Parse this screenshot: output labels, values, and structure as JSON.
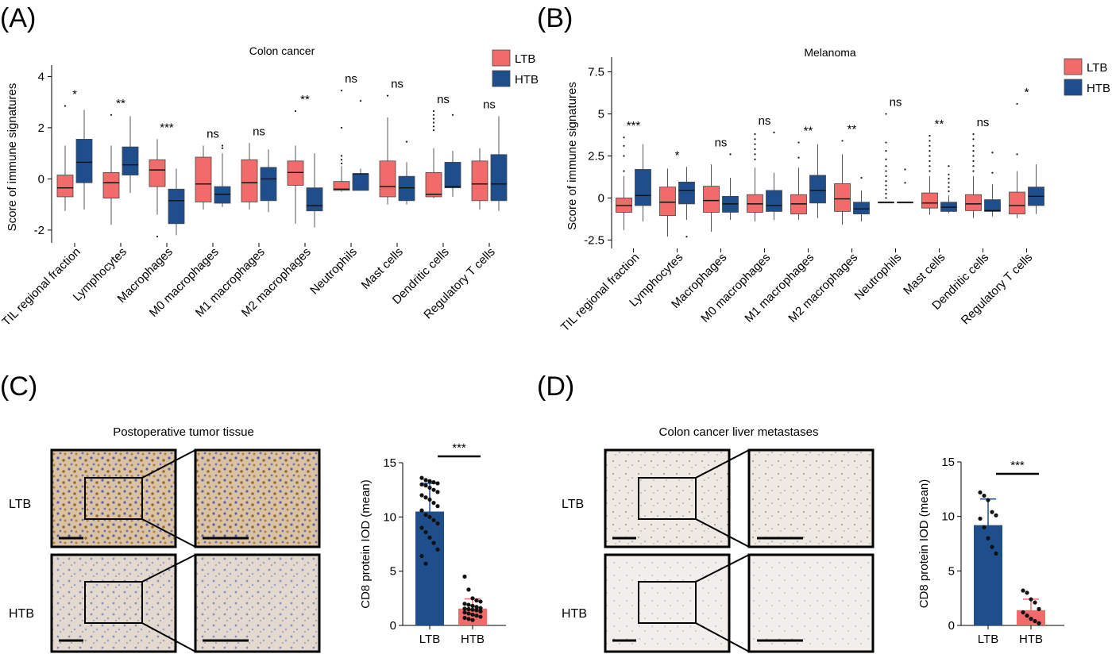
{
  "colors": {
    "LTB": "#f26b6b",
    "HTB": "#1f4e8c",
    "text": "#111111",
    "frame": "#000000"
  },
  "panels": [
    {
      "label": "(A)"
    },
    {
      "label": "(B)"
    },
    {
      "label": "(C)",
      "row_labels": [
        "LTB",
        "HTB"
      ],
      "image_title": "Postoperative tumor tissue"
    },
    {
      "label": "(D)",
      "row_labels": [
        "LTB",
        "HTB"
      ],
      "image_title": "Colon cancer liver metastases"
    }
  ],
  "chart_data": [
    {
      "type": "box",
      "panel": "A",
      "title": "Colon cancer",
      "ylabel": "Score of immune signatures",
      "ylim": [
        -2.5,
        4.2
      ],
      "yticks": [
        -2,
        0,
        2,
        4
      ],
      "legend": {
        "placement": "top-right",
        "entries": [
          "LTB",
          "HTB"
        ]
      },
      "categories": [
        "TIL regional fraction",
        "Lymphocytes",
        "Macrophages",
        "M0 macrophages",
        "M1 macrophages",
        "M2 macrophages",
        "Neutrophils",
        "Mast cells",
        "Dendritic cells",
        "Regulatory T cells"
      ],
      "significance": [
        "*",
        "**",
        "***",
        "ns",
        "ns",
        "**",
        "ns",
        "ns",
        "ns",
        "ns"
      ],
      "series": [
        {
          "name": "LTB",
          "boxes": [
            {
              "min": -1.25,
              "q1": -0.7,
              "median": -0.35,
              "q3": 0.15,
              "max": 1.3,
              "outliers": [
                2.85
              ]
            },
            {
              "min": -1.8,
              "q1": -0.75,
              "median": -0.15,
              "q3": 0.25,
              "max": 1.3,
              "outliers": [
                2.5
              ]
            },
            {
              "min": -1.4,
              "q1": -0.3,
              "median": 0.35,
              "q3": 0.75,
              "max": 1.55,
              "outliers": [
                -2.25
              ]
            },
            {
              "min": -1.2,
              "q1": -0.9,
              "median": -0.2,
              "q3": 0.85,
              "max": 1.3,
              "outliers": []
            },
            {
              "min": -1.2,
              "q1": -0.9,
              "median": -0.15,
              "q3": 0.75,
              "max": 1.4,
              "outliers": []
            },
            {
              "min": -1.75,
              "q1": -0.25,
              "median": 0.25,
              "q3": 0.7,
              "max": 1.3,
              "outliers": [
                2.65
              ]
            },
            {
              "min": -0.5,
              "q1": -0.45,
              "median": -0.4,
              "q3": -0.1,
              "max": 0.5,
              "outliers": [
                0.6,
                0.75,
                0.9,
                2.0,
                3.45
              ]
            },
            {
              "min": -1.0,
              "q1": -0.7,
              "median": -0.3,
              "q3": 0.7,
              "max": 2.4,
              "outliers": [
                3.25
              ]
            },
            {
              "min": -0.75,
              "q1": -0.7,
              "median": -0.6,
              "q3": 0.25,
              "max": 1.2,
              "outliers": [
                1.9,
                2.05,
                2.2,
                2.35,
                2.5,
                2.65
              ]
            },
            {
              "min": -1.2,
              "q1": -0.85,
              "median": -0.2,
              "q3": 0.7,
              "max": 1.2,
              "outliers": []
            }
          ]
        },
        {
          "name": "HTB",
          "boxes": [
            {
              "min": -1.2,
              "q1": -0.15,
              "median": 0.65,
              "q3": 1.55,
              "max": 2.7,
              "outliers": []
            },
            {
              "min": -0.55,
              "q1": 0.15,
              "median": 0.55,
              "q3": 1.25,
              "max": 2.45,
              "outliers": []
            },
            {
              "min": -2.2,
              "q1": -1.75,
              "median": -0.85,
              "q3": -0.4,
              "max": 0.4,
              "outliers": []
            },
            {
              "min": -1.1,
              "q1": -0.95,
              "median": -0.6,
              "q3": -0.3,
              "max": 1.0,
              "outliers": [
                1.2,
                1.3
              ]
            },
            {
              "min": -1.3,
              "q1": -0.85,
              "median": 0.0,
              "q3": 0.45,
              "max": 1.15,
              "outliers": []
            },
            {
              "min": -1.9,
              "q1": -1.25,
              "median": -1.05,
              "q3": -0.35,
              "max": 1.0,
              "outliers": []
            },
            {
              "min": -0.45,
              "q1": -0.45,
              "median": 0.2,
              "q3": 0.2,
              "max": 0.4,
              "outliers": [
                3.05
              ]
            },
            {
              "min": -1.0,
              "q1": -0.85,
              "median": -0.35,
              "q3": 0.1,
              "max": 0.65,
              "outliers": [
                1.45
              ]
            },
            {
              "min": -0.7,
              "q1": -0.35,
              "median": -0.3,
              "q3": 0.65,
              "max": 1.1,
              "outliers": [
                2.5
              ]
            },
            {
              "min": -1.25,
              "q1": -0.85,
              "median": -0.2,
              "q3": 0.95,
              "max": 2.45,
              "outliers": []
            }
          ]
        }
      ]
    },
    {
      "type": "box",
      "panel": "B",
      "title": "Melanoma",
      "ylabel": "Score of immune signatures",
      "ylim": [
        -3.0,
        8.0
      ],
      "yticks": [
        -2.5,
        0,
        2.5,
        5,
        7.5
      ],
      "legend": {
        "placement": "top-right",
        "entries": [
          "LTB",
          "HTB"
        ]
      },
      "categories": [
        "TIL regional fraction",
        "Lymphocytes",
        "Macrophages",
        "M0 macrophages",
        "M1 macrophages",
        "M2 macrophages",
        "Neutrophils",
        "Mast cells",
        "Dendritic cells",
        "Regulatory T cells"
      ],
      "significance": [
        "***",
        "*",
        "ns",
        "ns",
        "**",
        "**",
        "ns",
        "**",
        "ns",
        "*"
      ],
      "series": [
        {
          "name": "LTB",
          "boxes": [
            {
              "min": -1.9,
              "q1": -0.85,
              "median": -0.45,
              "q3": 0.0,
              "max": 1.3,
              "outliers": [
                1.6,
                2.5,
                3.1,
                3.6
              ]
            },
            {
              "min": -2.3,
              "q1": -1.05,
              "median": -0.25,
              "q3": 0.65,
              "max": 1.75,
              "outliers": []
            },
            {
              "min": -2.0,
              "q1": -0.85,
              "median": -0.15,
              "q3": 0.7,
              "max": 2.0,
              "outliers": []
            },
            {
              "min": -1.4,
              "q1": -0.85,
              "median": -0.35,
              "q3": 0.2,
              "max": 1.8,
              "outliers": [
                2.3,
                2.6,
                2.9,
                3.2,
                3.5,
                3.8
              ]
            },
            {
              "min": -1.3,
              "q1": -0.95,
              "median": -0.35,
              "q3": 0.2,
              "max": 1.8,
              "outliers": [
                2.4,
                3.3
              ]
            },
            {
              "min": -1.6,
              "q1": -0.8,
              "median": -0.05,
              "q3": 0.85,
              "max": 2.6,
              "outliers": [
                3.4
              ]
            },
            {
              "min": -0.25,
              "q1": -0.25,
              "median": -0.25,
              "q3": -0.25,
              "max": -0.25,
              "outliers": [
                0.0,
                0.25,
                0.5,
                0.75,
                1.0,
                1.3,
                1.6,
                1.9,
                2.3,
                2.8,
                3.3,
                5.0
              ]
            },
            {
              "min": -1.0,
              "q1": -0.6,
              "median": -0.3,
              "q3": 0.3,
              "max": 1.3,
              "outliers": [
                1.6,
                1.9,
                2.2,
                2.5,
                2.8,
                3.1,
                3.4,
                3.7
              ]
            },
            {
              "min": -1.2,
              "q1": -0.75,
              "median": -0.35,
              "q3": 0.2,
              "max": 1.3,
              "outliers": [
                1.6,
                1.9,
                2.2,
                2.5,
                2.8,
                3.1,
                3.5,
                3.8
              ]
            },
            {
              "min": -1.2,
              "q1": -0.95,
              "median": -0.45,
              "q3": 0.35,
              "max": 1.6,
              "outliers": [
                2.6,
                5.6
              ]
            }
          ]
        },
        {
          "name": "HTB",
          "boxes": [
            {
              "min": -1.4,
              "q1": -0.45,
              "median": 0.15,
              "q3": 1.7,
              "max": 3.2,
              "outliers": []
            },
            {
              "min": -1.3,
              "q1": -0.35,
              "median": 0.45,
              "q3": 0.95,
              "max": 1.85,
              "outliers": [
                -2.3
              ]
            },
            {
              "min": -1.3,
              "q1": -0.85,
              "median": -0.35,
              "q3": 0.1,
              "max": 1.2,
              "outliers": [
                2.6
              ]
            },
            {
              "min": -1.3,
              "q1": -0.8,
              "median": -0.45,
              "q3": 0.45,
              "max": 1.5,
              "outliers": [
                3.9
              ]
            },
            {
              "min": -1.2,
              "q1": -0.3,
              "median": 0.45,
              "q3": 1.35,
              "max": 3.2,
              "outliers": []
            },
            {
              "min": -1.4,
              "q1": -0.95,
              "median": -0.65,
              "q3": -0.25,
              "max": 0.45,
              "outliers": [
                1.2
              ]
            },
            {
              "min": -0.25,
              "q1": -0.25,
              "median": -0.25,
              "q3": -0.25,
              "max": -0.25,
              "outliers": [
                0.9,
                1.7
              ]
            },
            {
              "min": -0.9,
              "q1": -0.8,
              "median": -0.55,
              "q3": -0.25,
              "max": 0.15,
              "outliers": [
                0.4,
                0.65,
                0.9,
                1.15,
                1.4,
                1.9
              ]
            },
            {
              "min": -1.1,
              "q1": -0.8,
              "median": -0.75,
              "q3": -0.1,
              "max": 0.8,
              "outliers": [
                1.5,
                2.7
              ]
            },
            {
              "min": -0.95,
              "q1": -0.45,
              "median": 0.1,
              "q3": 0.65,
              "max": 2.0,
              "outliers": []
            }
          ]
        }
      ]
    },
    {
      "type": "bar",
      "panel": "C",
      "ylabel": "CD8 protein IOD (mean)",
      "ylim": [
        0,
        15
      ],
      "yticks": [
        0,
        5,
        10,
        15
      ],
      "categories": [
        "LTB",
        "HTB"
      ],
      "values": [
        10.5,
        1.55
      ],
      "errors": [
        2.6,
        0.9
      ],
      "significance": "***",
      "points": [
        [
          13.6,
          13.4,
          13.3,
          13.2,
          13.1,
          13.0,
          12.9,
          12.7,
          12.5,
          12.3,
          12.0,
          11.8,
          11.6,
          11.3,
          11.0,
          10.6,
          10.2,
          10.0,
          9.7,
          9.4,
          9.0,
          8.6,
          8.1,
          7.6,
          7.0,
          6.4,
          5.7
        ],
        [
          4.5,
          3.3,
          2.5,
          2.3,
          2.2,
          2.0,
          1.9,
          1.8,
          1.7,
          1.6,
          1.55,
          1.5,
          1.45,
          1.4,
          1.3,
          1.2,
          1.1,
          1.0,
          0.9,
          0.8,
          0.7,
          0.6,
          0.5
        ]
      ]
    },
    {
      "type": "bar",
      "panel": "D",
      "ylabel": "CD8 protein IOD (mean)",
      "ylim": [
        0,
        15
      ],
      "yticks": [
        0,
        5,
        10,
        15
      ],
      "categories": [
        "LTB",
        "HTB"
      ],
      "values": [
        9.2,
        1.4
      ],
      "errors": [
        2.4,
        1.0
      ],
      "significance": "***",
      "points": [
        [
          12.2,
          11.9,
          11.5,
          10.4,
          10.1,
          9.8,
          9.0,
          8.0,
          7.2,
          6.6
        ],
        [
          3.2,
          3.0,
          2.4,
          2.1,
          1.5,
          1.2,
          0.9,
          0.6,
          0.4,
          0.2
        ]
      ]
    }
  ]
}
